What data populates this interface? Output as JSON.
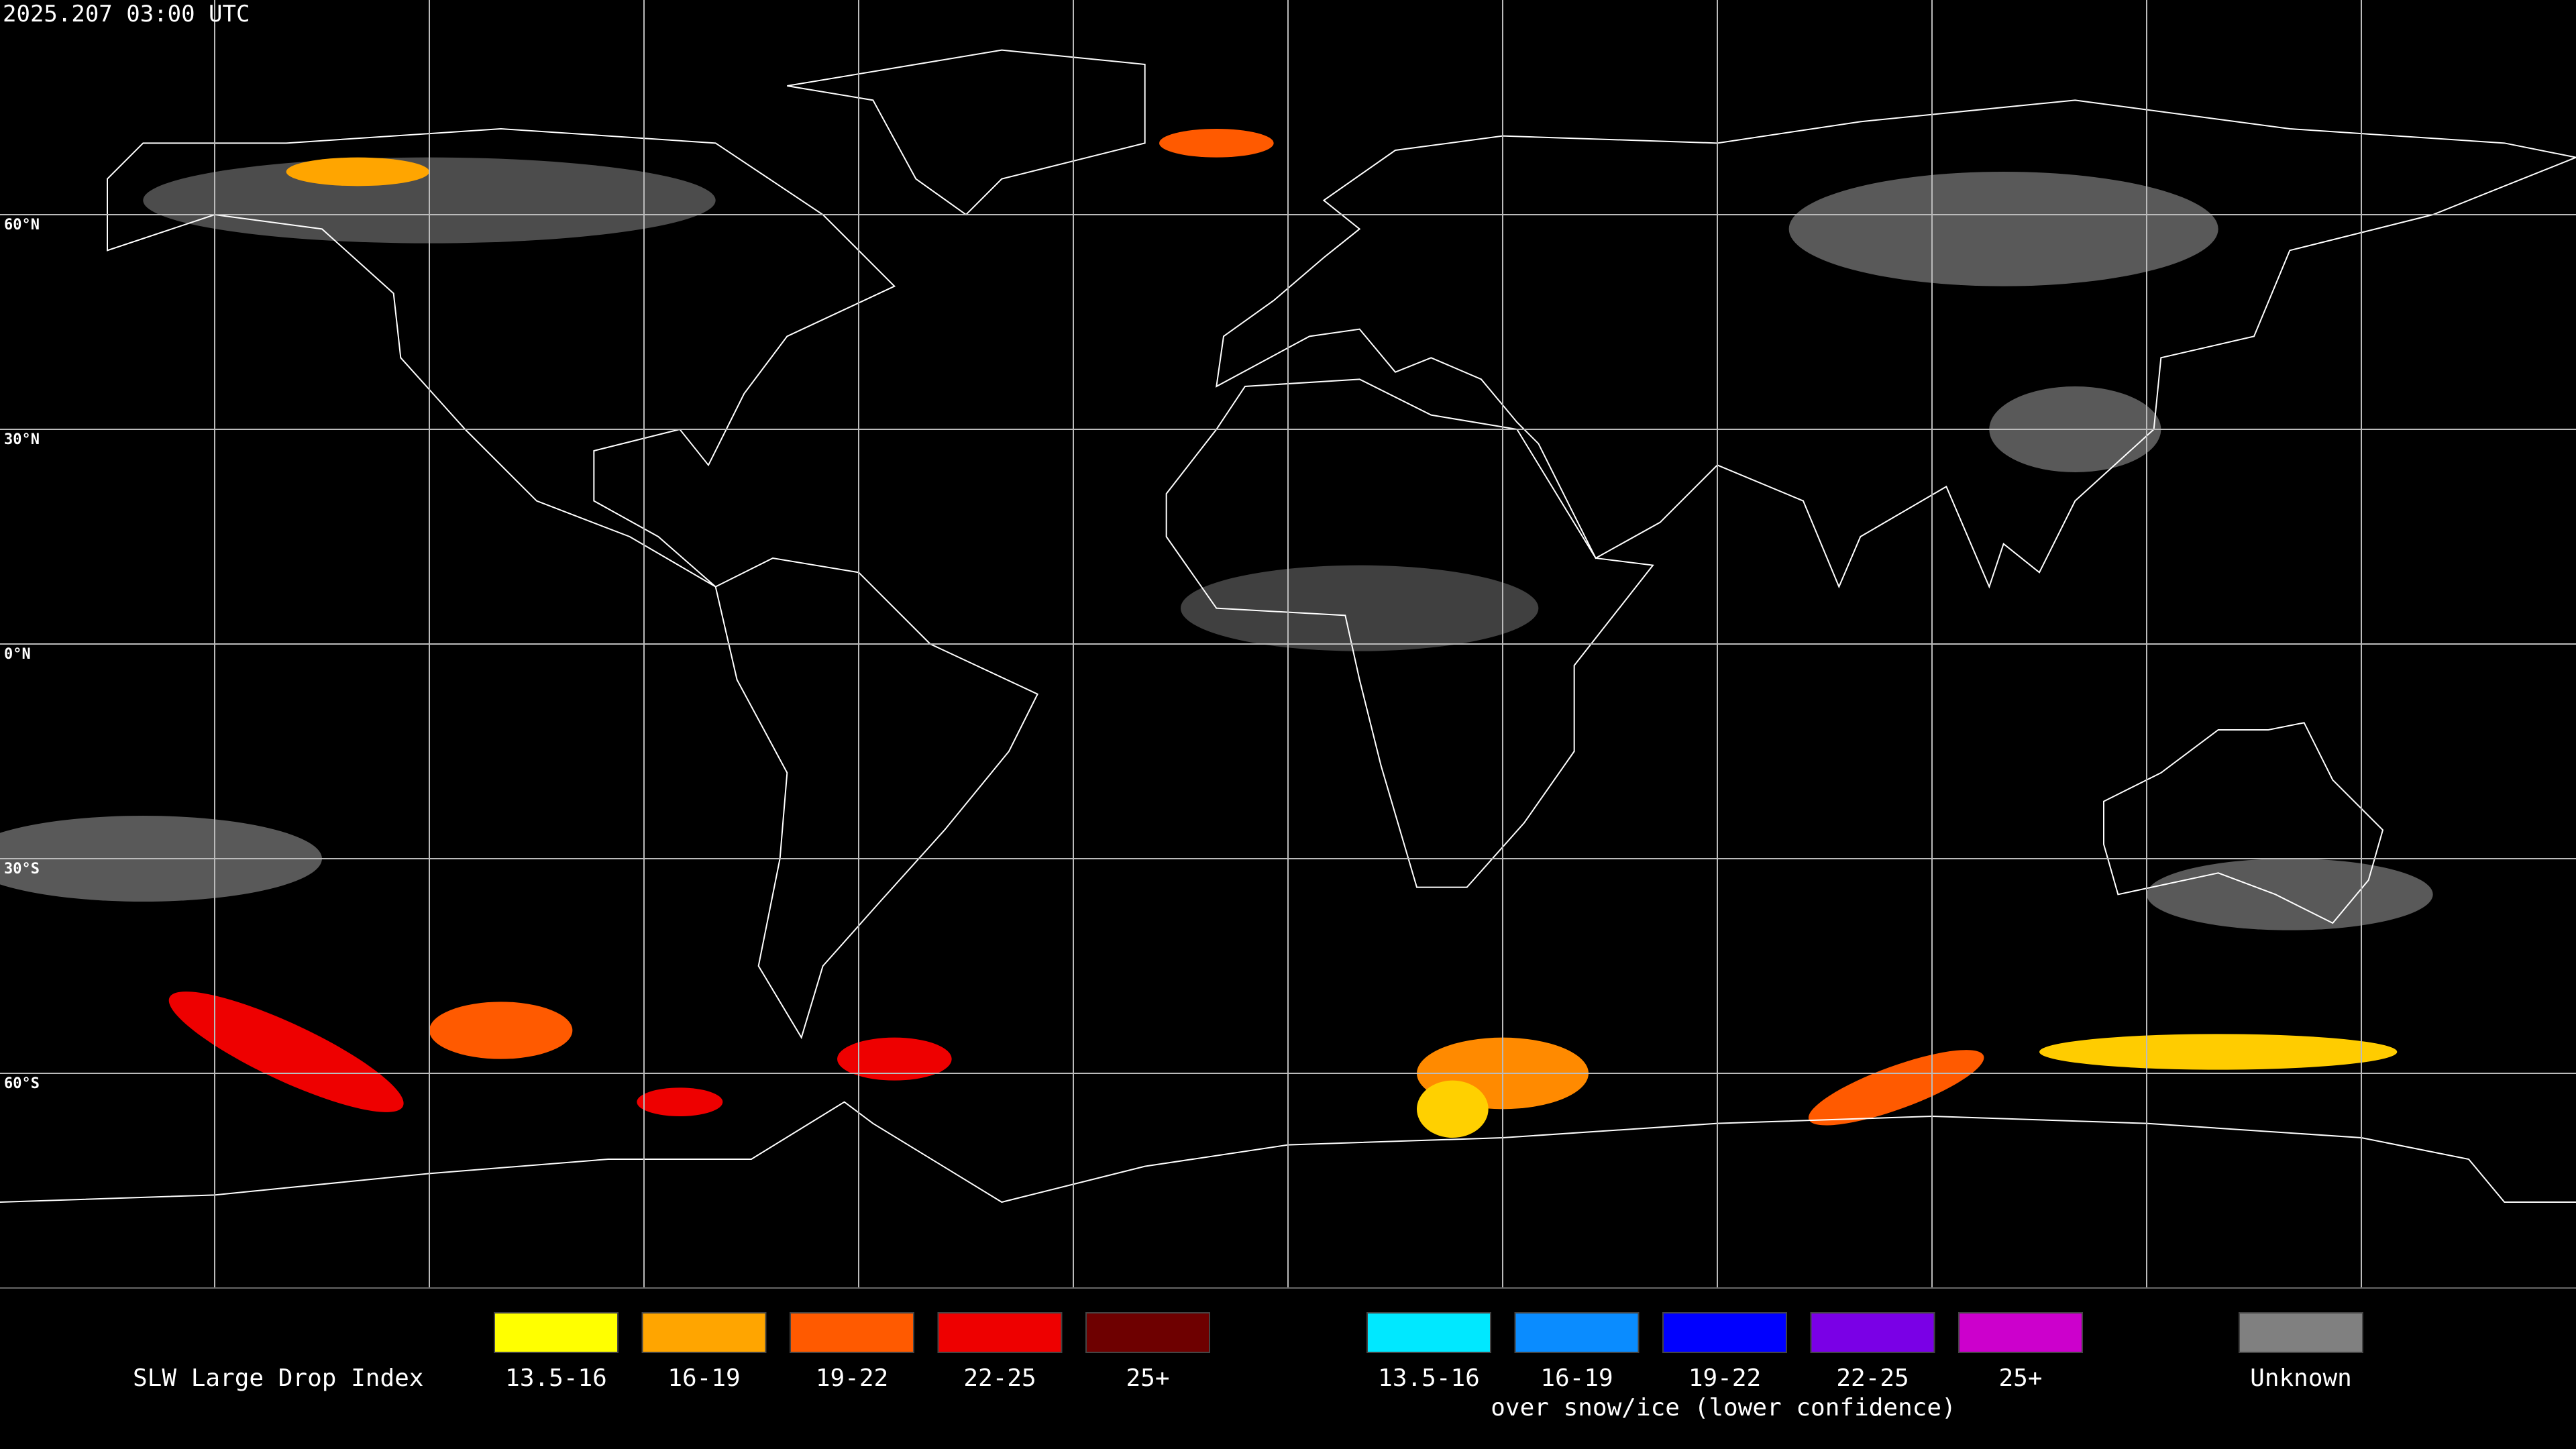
{
  "timestamp": "2025.207 03:00 UTC",
  "grid_labels": [
    "60°N",
    "30°N",
    "0°N",
    "30°S",
    "60°S"
  ],
  "legend": {
    "title": "SLW Large Drop Index",
    "items": [
      {
        "label": "13.5-16",
        "color": "#ffff00"
      },
      {
        "label": "16-19",
        "color": "#ffa500"
      },
      {
        "label": "19-22",
        "color": "#ff5a00"
      },
      {
        "label": "22-25",
        "color": "#ee0000"
      },
      {
        "label": "25+",
        "color": "#6e0000"
      }
    ],
    "snow_ice": {
      "items": [
        {
          "label": "13.5-16",
          "color": "#00e8ff"
        },
        {
          "label": "16-19",
          "color": "#0a8cff"
        },
        {
          "label": "19-22",
          "color": "#0000ff"
        },
        {
          "label": "22-25",
          "color": "#7a00e6"
        },
        {
          "label": "25+",
          "color": "#cc00cc"
        }
      ],
      "caption": "over snow/ice (lower confidence)"
    },
    "unknown": {
      "label": "Unknown",
      "color": "#808080"
    }
  }
}
